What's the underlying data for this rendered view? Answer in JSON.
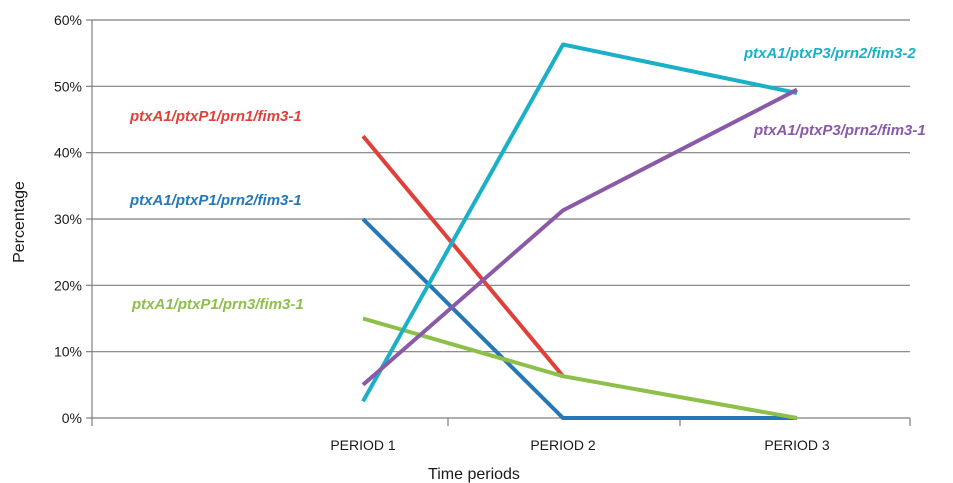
{
  "chart_data": {
    "type": "line",
    "xlabel": "Time periods",
    "ylabel": "Percentage",
    "categories": [
      "PERIOD 1",
      "PERIOD 2",
      "PERIOD 3"
    ],
    "ylim": [
      0,
      60
    ],
    "yticks": [
      "0%",
      "10%",
      "20%",
      "30%",
      "40%",
      "50%",
      "60%"
    ],
    "grid": true,
    "legend": "inline labels near lines",
    "series": [
      {
        "name": "ptxA1/ptxP1/prn1/fim3-1",
        "color": "#e0403a",
        "values": [
          42.5,
          6.3,
          null
        ]
      },
      {
        "name": "ptxA1/ptxP1/prn2/fim3-1",
        "color": "#2478b8",
        "values": [
          30.0,
          0.0,
          0.0
        ]
      },
      {
        "name": "ptxA1/ptxP1/prn3/fim3-1",
        "color": "#8cc04a",
        "values": [
          15.0,
          6.3,
          0.0
        ]
      },
      {
        "name": "ptxA1/ptxP3/prn2/fim3-2",
        "color": "#1ab0c8",
        "values": [
          2.5,
          56.3,
          49.0
        ]
      },
      {
        "name": "ptxA1/ptxP3/prn2/fim3-1",
        "color": "#8a5aa8",
        "values": [
          5.0,
          31.3,
          49.5
        ]
      }
    ]
  }
}
